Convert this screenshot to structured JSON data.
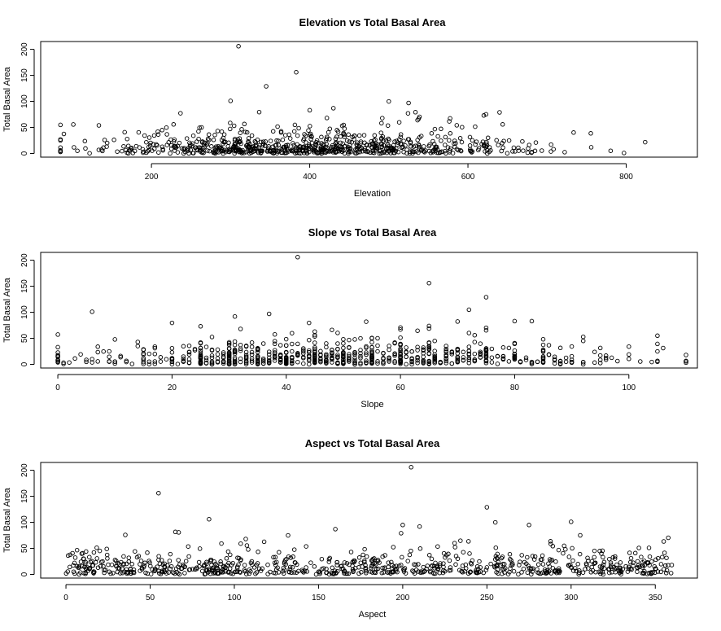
{
  "chart_data": [
    {
      "type": "scatter",
      "title": "Elevation vs Total Basal Area",
      "xlabel": "Elevation",
      "ylabel": "Total Basal Area",
      "xlim": [
        60,
        890
      ],
      "ylim": [
        -7,
        215
      ],
      "xticks": [
        200,
        400,
        600,
        800
      ],
      "yticks": [
        0,
        50,
        100,
        150,
        200
      ],
      "marker": "open-circle",
      "grid": false,
      "notable_points": [
        [
          310,
          206
        ],
        [
          383,
          156
        ],
        [
          345,
          129
        ],
        [
          300,
          101
        ],
        [
          500,
          100
        ],
        [
          525,
          97
        ],
        [
          430,
          87
        ],
        [
          400,
          83
        ],
        [
          640,
          79
        ],
        [
          620,
          73
        ]
      ],
      "x_range_observed": [
        85,
        870
      ],
      "y_typical_range": [
        0,
        60
      ],
      "points_seed": 11,
      "point_count": 780,
      "x_distribution": {
        "kind": "normal",
        "mean": 400,
        "sd": 130
      },
      "y_distribution": {
        "kind": "gamma-like",
        "mean": 20
      }
    },
    {
      "type": "scatter",
      "title": "Slope vs Total Basal Area",
      "xlabel": "Slope",
      "ylabel": "Total Basal Area",
      "xlim": [
        -3,
        112
      ],
      "ylim": [
        -7,
        215
      ],
      "xticks": [
        0,
        20,
        40,
        60,
        80,
        100
      ],
      "yticks": [
        0,
        50,
        100,
        150,
        200
      ],
      "marker": "open-circle",
      "grid": false,
      "notable_points": [
        [
          42,
          206
        ],
        [
          65,
          156
        ],
        [
          75,
          129
        ],
        [
          6,
          101
        ],
        [
          72,
          105
        ],
        [
          31,
          92
        ],
        [
          37,
          97
        ],
        [
          83,
          83
        ],
        [
          80,
          83
        ],
        [
          105,
          55
        ]
      ],
      "x_range_observed": [
        0,
        110
      ],
      "y_typical_range": [
        0,
        60
      ],
      "points_seed": 23,
      "point_count": 780,
      "x_distribution": {
        "kind": "discrete-columns",
        "mean": 50,
        "sd": 22
      },
      "y_distribution": {
        "kind": "gamma-like",
        "mean": 20
      }
    },
    {
      "type": "scatter",
      "title": "Aspect vs Total Basal Area",
      "xlabel": "Aspect",
      "ylabel": "Total Basal Area",
      "xlim": [
        -15,
        375
      ],
      "ylim": [
        -7,
        215
      ],
      "xticks": [
        0,
        50,
        100,
        150,
        200,
        250,
        300,
        350
      ],
      "yticks": [
        0,
        50,
        100,
        150,
        200
      ],
      "marker": "open-circle",
      "grid": false,
      "notable_points": [
        [
          205,
          206
        ],
        [
          55,
          156
        ],
        [
          250,
          129
        ],
        [
          85,
          106
        ],
        [
          255,
          100
        ],
        [
          300,
          101
        ],
        [
          200,
          95
        ],
        [
          210,
          92
        ],
        [
          160,
          87
        ],
        [
          275,
          95
        ]
      ],
      "x_range_observed": [
        0,
        360
      ],
      "y_typical_range": [
        0,
        60
      ],
      "points_seed": 37,
      "point_count": 780,
      "x_distribution": {
        "kind": "uniform",
        "min": 0,
        "max": 360
      },
      "y_distribution": {
        "kind": "gamma-like",
        "mean": 20
      }
    }
  ]
}
